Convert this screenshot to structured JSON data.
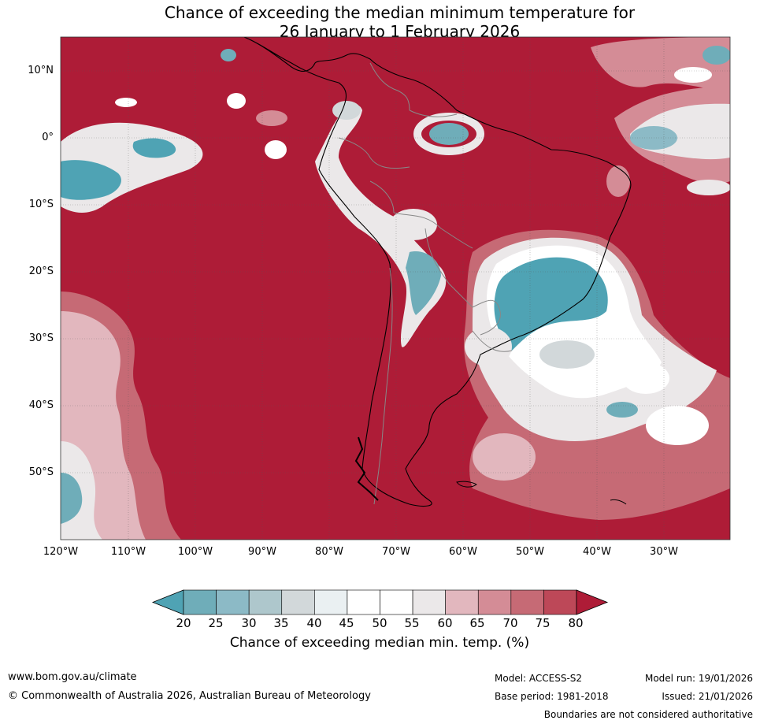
{
  "title": {
    "line1": "Chance of exceeding the median minimum temperature for",
    "line2": "26 January to 1 February 2026"
  },
  "map": {
    "lat_labels": [
      "10°N",
      "0°",
      "10°S",
      "20°S",
      "30°S",
      "40°S",
      "50°S"
    ],
    "lon_labels": [
      "120°W",
      "110°W",
      "100°W",
      "90°W",
      "80°W",
      "70°W",
      "60°W",
      "50°W",
      "40°W",
      "30°W"
    ]
  },
  "colorbar": {
    "ticks": [
      "20",
      "25",
      "30",
      "35",
      "40",
      "45",
      "50",
      "55",
      "60",
      "65",
      "70",
      "75",
      "80"
    ],
    "colors": [
      "#4fa3b4",
      "#6fadb9",
      "#8cbac6",
      "#aec7cc",
      "#d2d8da",
      "#eaf0f2",
      "#ffffff",
      "#ffffff",
      "#ebe8e9",
      "#e2b7be",
      "#d48c96",
      "#c66a75",
      "#bd4858",
      "#ae1c37"
    ],
    "label": "Chance of exceeding median min. temp. (%)"
  },
  "footer": {
    "website": "www.bom.gov.au/climate",
    "copyright": "© Commonwealth of Australia 2026, Australian Bureau of Meteorology",
    "model": "Model: ACCESS-S2",
    "base_period": "Base period: 1981-2018",
    "model_run": "Model run: 19/01/2026",
    "issued": "Issued: 21/01/2026",
    "boundaries": "Boundaries are not considered authoritative"
  }
}
